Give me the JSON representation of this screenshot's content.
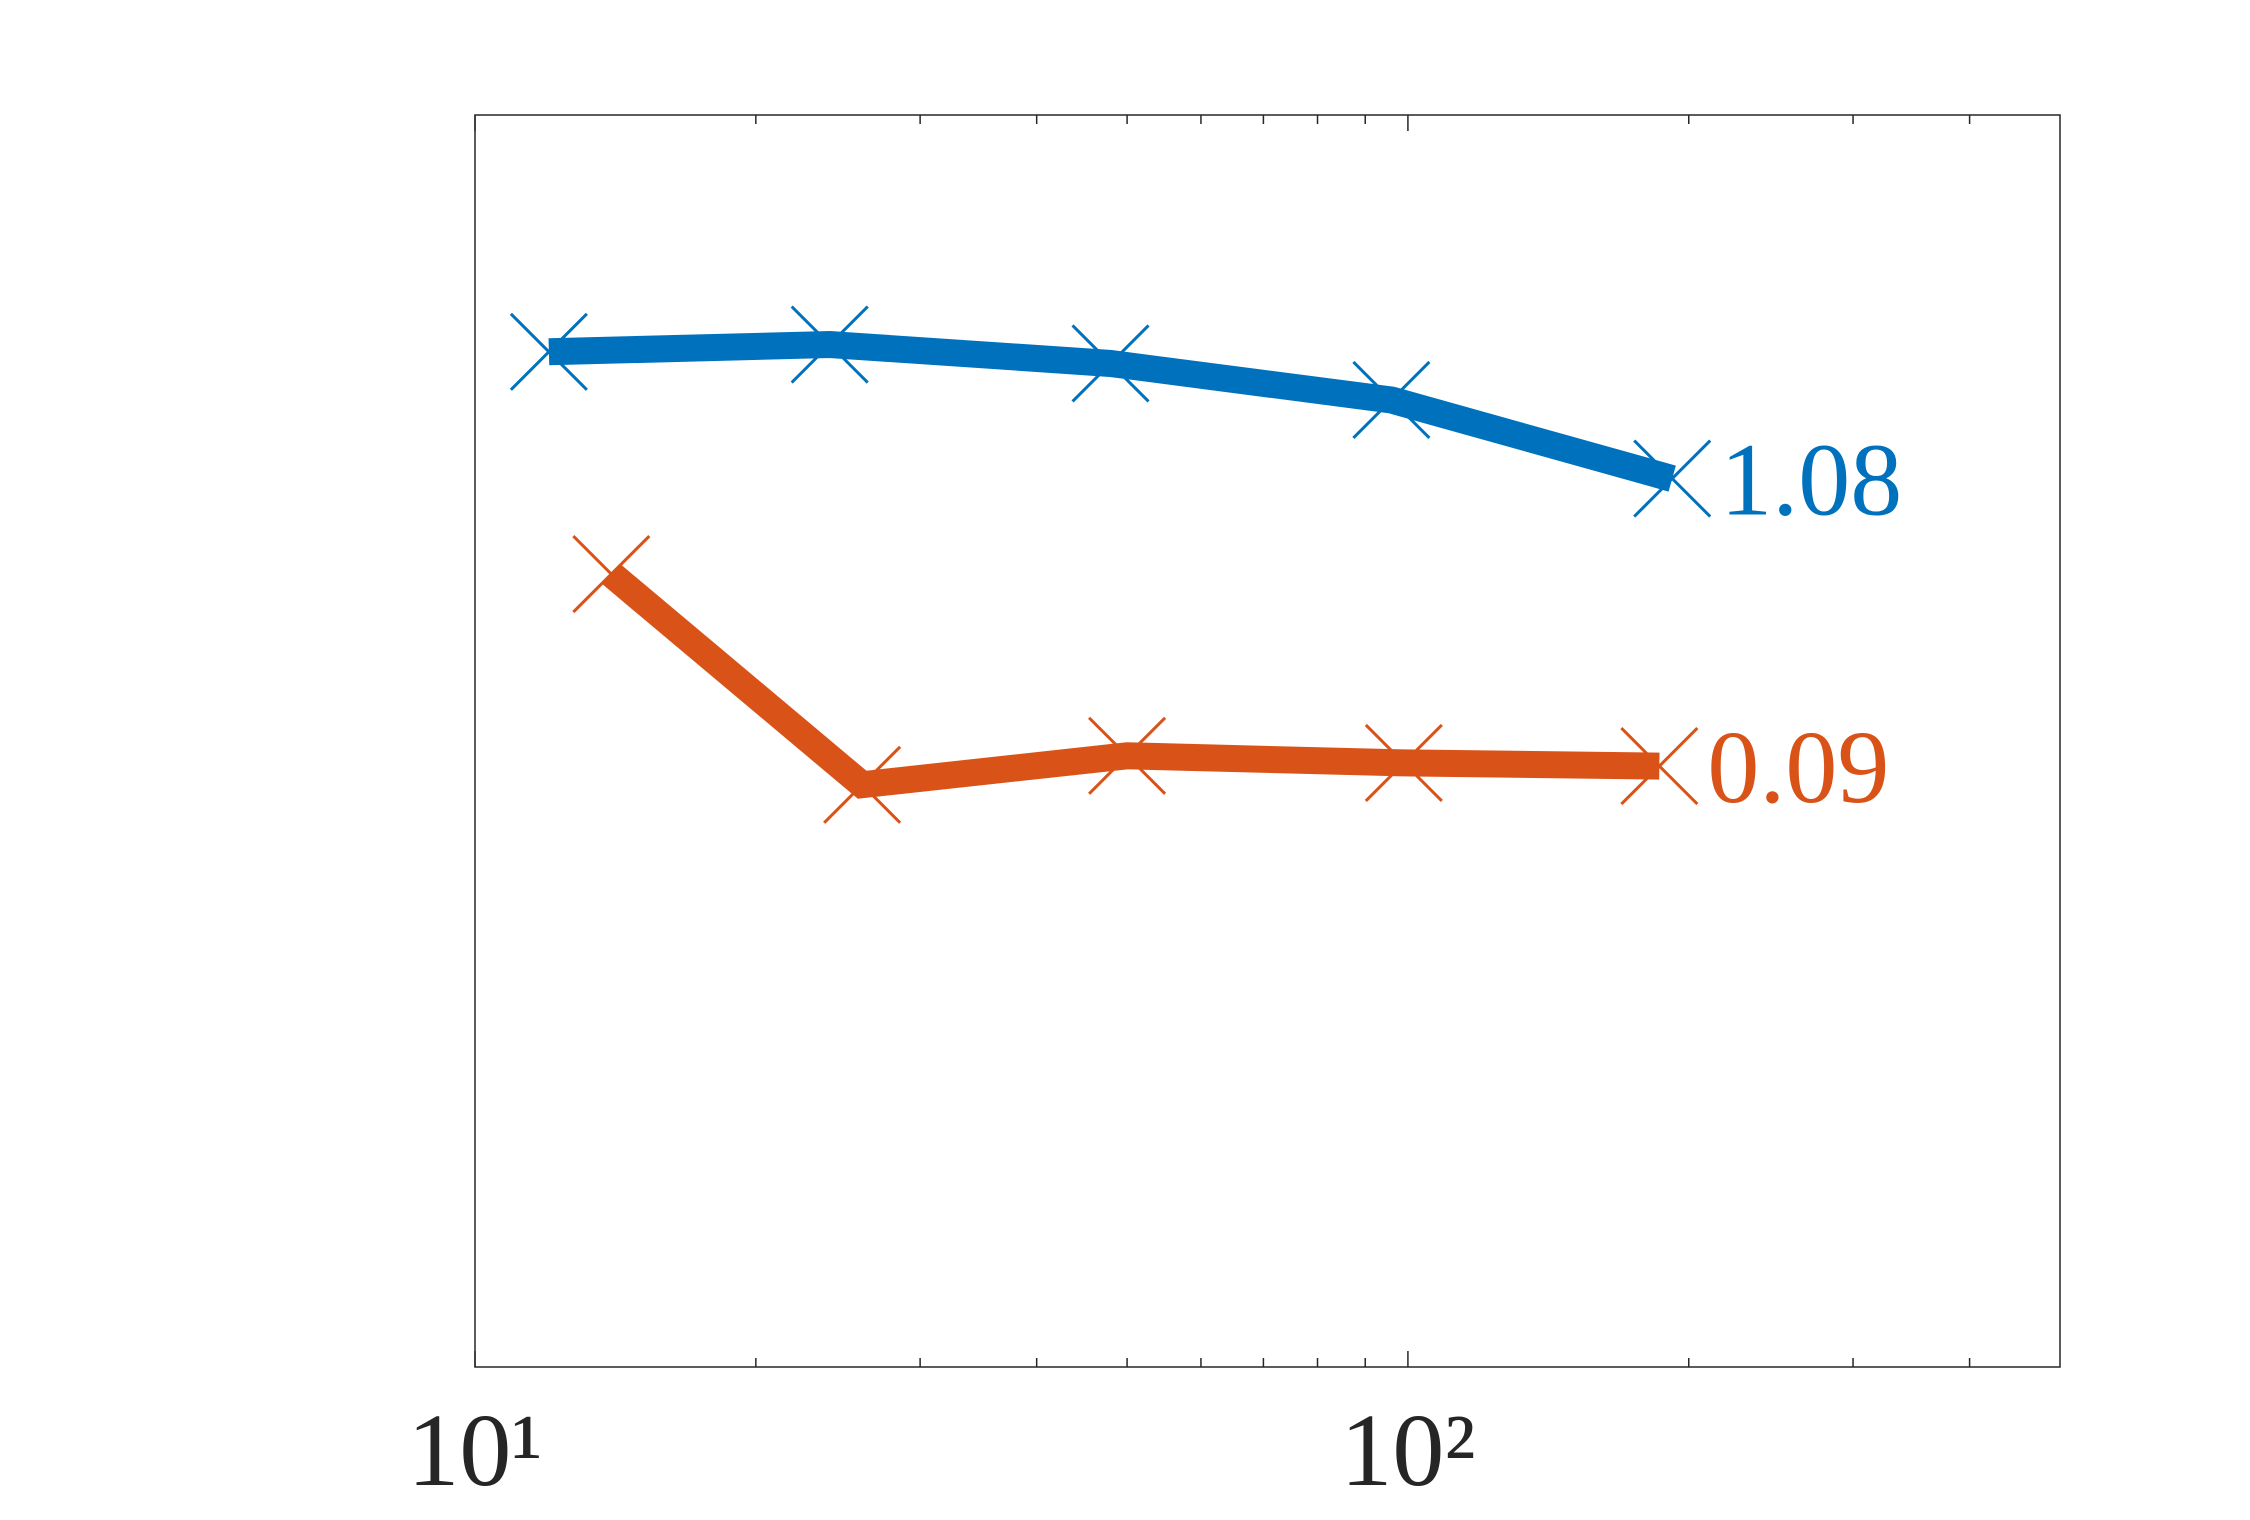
{
  "chart_data": {
    "type": "line",
    "xscale": "log",
    "yscale": "log",
    "xlim": [
      10,
      500
    ],
    "ylim": [
      0.0005,
      25
    ],
    "xticks": [
      {
        "value": 10,
        "label": "10¹"
      },
      {
        "value": 100,
        "label": "10²"
      }
    ],
    "xminorticks": [
      20,
      30,
      40,
      50,
      60,
      70,
      80,
      90,
      200,
      300,
      400
    ],
    "end_labels": true,
    "series": [
      {
        "color": "#0072BD",
        "x": [
          12,
          24,
          48,
          96,
          192
        ],
        "values": [
          3.23,
          3.44,
          2.92,
          2.13,
          1.08
        ]
      },
      {
        "color": "#D95319",
        "x": [
          14,
          26,
          50,
          99,
          186
        ],
        "values": [
          0.473,
          0.0766,
          0.0984,
          0.0925,
          0.09
        ]
      }
    ]
  }
}
